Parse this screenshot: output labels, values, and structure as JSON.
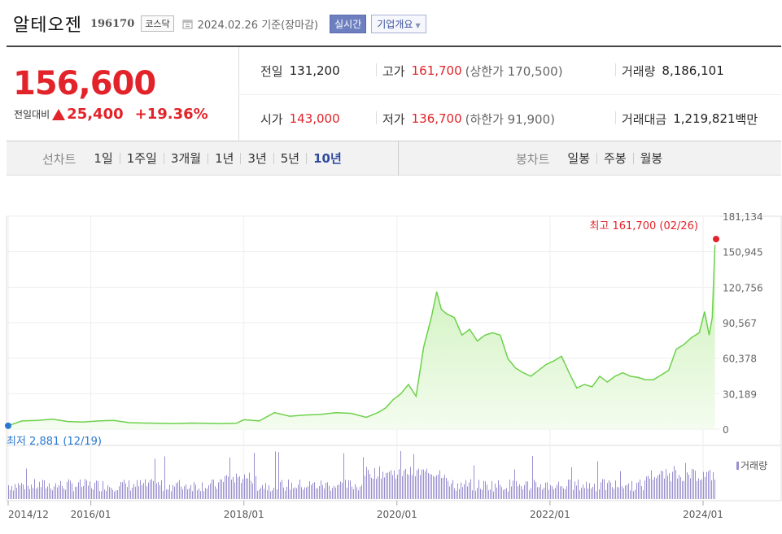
{
  "header": {
    "company_name": "알테오젠",
    "code": "196170",
    "market": "코스닥",
    "date_text": "2024.02.26  기준(장마감)",
    "realtime_button": "실시간",
    "company_info_button": "기업개요",
    "company_info_arrow": "▼"
  },
  "quote": {
    "price": "156,600",
    "change_label": "전일대비",
    "change_value": "25,400",
    "change_percent": "+19.36%",
    "prev_close_label": "전일",
    "prev_close": "131,200",
    "high_label": "고가",
    "high": "161,700",
    "upper_limit": "(상한가 170,500)",
    "volume_label": "거래량",
    "volume": "8,186,101",
    "open_label": "시가",
    "open": "143,000",
    "low_label": "저가",
    "low": "136,700",
    "lower_limit": "(하한가 91,900)",
    "amount_label": "거래대금",
    "amount": "1,219,821",
    "amount_unit": "백만"
  },
  "toolbar": {
    "line_chart_title": "선차트",
    "line_ranges": [
      "1일",
      "1주일",
      "3개월",
      "1년",
      "3년",
      "5년",
      "10년"
    ],
    "active_range": "10년",
    "candle_chart_title": "봉차트",
    "candle_ranges": [
      "일봉",
      "주봉",
      "월봉"
    ]
  },
  "chart_data": {
    "type": "area",
    "y_ticks": [
      "181,134",
      "150,945",
      "120,756",
      "90,567",
      "60,378",
      "30,189",
      "0"
    ],
    "y_tick_values": [
      181134,
      150945,
      120756,
      90567,
      60378,
      30189,
      0
    ],
    "ylim": [
      0,
      181134
    ],
    "x_ticks": [
      "2014/12",
      "2016/01",
      "2018/01",
      "2020/01",
      "2022/01",
      "2024/01"
    ],
    "x_tick_values": [
      2014.92,
      2016.0,
      2018.0,
      2020.0,
      2022.0,
      2024.0
    ],
    "xlim": [
      2014.92,
      2024.17
    ],
    "max_label": "최고 161,700 (02/26)",
    "min_label": "최저 2,881 (12/19)",
    "volume_legend": "거래량",
    "colors": {
      "line": "#6dd14b",
      "fill_top": "#c8f0b4",
      "fill_bottom": "#f4fcef",
      "volume": "#9b8fcf",
      "max_marker": "#e2232a",
      "min_marker": "#2a78d0",
      "max_text": "#e2232a",
      "min_text": "#2a78d0"
    },
    "x": [
      2014.92,
      2015.1,
      2015.3,
      2015.5,
      2015.7,
      2015.9,
      2016.1,
      2016.3,
      2016.5,
      2016.7,
      2016.9,
      2017.1,
      2017.3,
      2017.5,
      2017.7,
      2017.9,
      2018.0,
      2018.2,
      2018.4,
      2018.6,
      2018.8,
      2019.0,
      2019.2,
      2019.4,
      2019.6,
      2019.75,
      2019.85,
      2019.95,
      2020.05,
      2020.15,
      2020.25,
      2020.35,
      2020.45,
      2020.52,
      2020.58,
      2020.65,
      2020.75,
      2020.85,
      2020.95,
      2021.05,
      2021.15,
      2021.25,
      2021.35,
      2021.45,
      2021.55,
      2021.65,
      2021.75,
      2021.85,
      2021.95,
      2022.05,
      2022.15,
      2022.25,
      2022.35,
      2022.45,
      2022.55,
      2022.65,
      2022.75,
      2022.85,
      2022.95,
      2023.05,
      2023.15,
      2023.25,
      2023.35,
      2023.45,
      2023.55,
      2023.65,
      2023.75,
      2023.85,
      2023.95,
      2024.02,
      2024.08,
      2024.12,
      2024.155
    ],
    "y": [
      2881,
      7000,
      7500,
      8500,
      6500,
      6000,
      7000,
      7500,
      5500,
      5200,
      5000,
      4800,
      5200,
      5000,
      4800,
      5000,
      8000,
      7000,
      14000,
      11000,
      12000,
      12500,
      14000,
      13500,
      10000,
      14000,
      18000,
      25000,
      30000,
      38000,
      28000,
      70000,
      95000,
      117000,
      102000,
      98000,
      95000,
      80000,
      85000,
      75000,
      80000,
      82000,
      80000,
      60000,
      52000,
      48000,
      45000,
      50000,
      55000,
      58000,
      62000,
      48000,
      35000,
      38000,
      36000,
      45000,
      40000,
      45000,
      48000,
      45000,
      44000,
      42000,
      42000,
      46000,
      50000,
      68000,
      72000,
      78000,
      82000,
      100000,
      80000,
      95000,
      156600
    ]
  }
}
